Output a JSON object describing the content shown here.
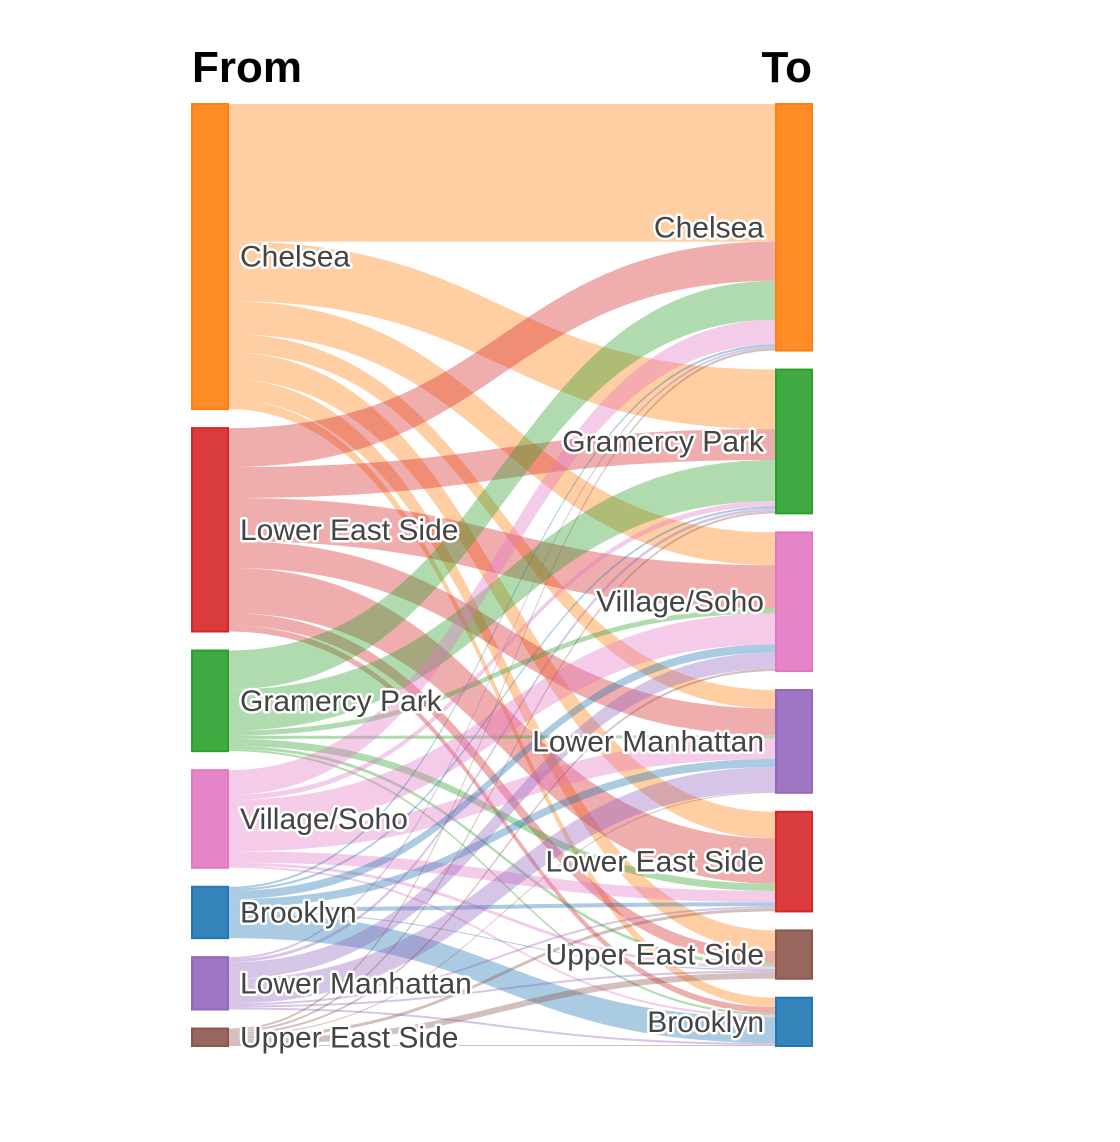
{
  "chart_data": {
    "type": "sankey",
    "headers": {
      "from": "From",
      "to": "To"
    },
    "nodes": [
      {
        "name": "Chelsea",
        "color": "#ff7f0e"
      },
      {
        "name": "Lower East Side",
        "color": "#d62728"
      },
      {
        "name": "Gramercy Park",
        "color": "#2ca02c"
      },
      {
        "name": "Village/Soho",
        "color": "#e377c2"
      },
      {
        "name": "Brooklyn",
        "color": "#1f77b4"
      },
      {
        "name": "Lower Manhattan",
        "color": "#9467bd"
      },
      {
        "name": "Upper East Side",
        "color": "#8c564b"
      }
    ],
    "source_order": [
      "Chelsea",
      "Lower East Side",
      "Gramercy Park",
      "Village/Soho",
      "Brooklyn",
      "Lower Manhattan",
      "Upper East Side"
    ],
    "target_order": [
      "Chelsea",
      "Gramercy Park",
      "Village/Soho",
      "Lower Manhattan",
      "Lower East Side",
      "Upper East Side",
      "Brooklyn"
    ],
    "links": [
      {
        "source": "Chelsea",
        "target": "Chelsea",
        "value": 134
      },
      {
        "source": "Chelsea",
        "target": "Gramercy Park",
        "value": 58
      },
      {
        "source": "Chelsea",
        "target": "Village/Soho",
        "value": 32
      },
      {
        "source": "Chelsea",
        "target": "Lower Manhattan",
        "value": 18
      },
      {
        "source": "Chelsea",
        "target": "Lower East Side",
        "value": 26
      },
      {
        "source": "Chelsea",
        "target": "Upper East Side",
        "value": 20
      },
      {
        "source": "Chelsea",
        "target": "Brooklyn",
        "value": 9
      },
      {
        "source": "Lower East Side",
        "target": "Chelsea",
        "value": 38
      },
      {
        "source": "Lower East Side",
        "target": "Gramercy Park",
        "value": 30
      },
      {
        "source": "Lower East Side",
        "target": "Village/Soho",
        "value": 42
      },
      {
        "source": "Lower East Side",
        "target": "Lower Manhattan",
        "value": 26
      },
      {
        "source": "Lower East Side",
        "target": "Lower East Side",
        "value": 44
      },
      {
        "source": "Lower East Side",
        "target": "Upper East Side",
        "value": 12
      },
      {
        "source": "Lower East Side",
        "target": "Brooklyn",
        "value": 6
      },
      {
        "source": "Gramercy Park",
        "target": "Chelsea",
        "value": 38
      },
      {
        "source": "Gramercy Park",
        "target": "Gramercy Park",
        "value": 40
      },
      {
        "source": "Gramercy Park",
        "target": "Village/Soho",
        "value": 5
      },
      {
        "source": "Gramercy Park",
        "target": "Lower Manhattan",
        "value": 3
      },
      {
        "source": "Gramercy Park",
        "target": "Lower East Side",
        "value": 7
      },
      {
        "source": "Gramercy Park",
        "target": "Upper East Side",
        "value": 3
      },
      {
        "source": "Gramercy Park",
        "target": "Brooklyn",
        "value": 2
      },
      {
        "source": "Village/Soho",
        "target": "Chelsea",
        "value": 24
      },
      {
        "source": "Village/Soho",
        "target": "Gramercy Park",
        "value": 5
      },
      {
        "source": "Village/Soho",
        "target": "Village/Soho",
        "value": 30
      },
      {
        "source": "Village/Soho",
        "target": "Lower Manhattan",
        "value": 20
      },
      {
        "source": "Village/Soho",
        "target": "Lower East Side",
        "value": 11
      },
      {
        "source": "Village/Soho",
        "target": "Upper East Side",
        "value": 3
      },
      {
        "source": "Village/Soho",
        "target": "Brooklyn",
        "value": 2
      },
      {
        "source": "Brooklyn",
        "target": "Chelsea",
        "value": 2
      },
      {
        "source": "Brooklyn",
        "target": "Gramercy Park",
        "value": 2
      },
      {
        "source": "Brooklyn",
        "target": "Village/Soho",
        "value": 8
      },
      {
        "source": "Brooklyn",
        "target": "Lower Manhattan",
        "value": 8
      },
      {
        "source": "Brooklyn",
        "target": "Lower East Side",
        "value": 4
      },
      {
        "source": "Brooklyn",
        "target": "Upper East Side",
        "value": 1
      },
      {
        "source": "Brooklyn",
        "target": "Brooklyn",
        "value": 25
      },
      {
        "source": "Lower Manhattan",
        "target": "Chelsea",
        "value": 2
      },
      {
        "source": "Lower Manhattan",
        "target": "Gramercy Park",
        "value": 3
      },
      {
        "source": "Lower Manhattan",
        "target": "Village/Soho",
        "value": 16
      },
      {
        "source": "Lower Manhattan",
        "target": "Lower Manhattan",
        "value": 24
      },
      {
        "source": "Lower Manhattan",
        "target": "Lower East Side",
        "value": 2
      },
      {
        "source": "Lower Manhattan",
        "target": "Upper East Side",
        "value": 2
      },
      {
        "source": "Lower Manhattan",
        "target": "Brooklyn",
        "value": 2
      },
      {
        "source": "Upper East Side",
        "target": "Chelsea",
        "value": 2
      },
      {
        "source": "Upper East Side",
        "target": "Gramercy Park",
        "value": 2
      },
      {
        "source": "Upper East Side",
        "target": "Village/Soho",
        "value": 2
      },
      {
        "source": "Upper East Side",
        "target": "Lower Manhattan",
        "value": 1
      },
      {
        "source": "Upper East Side",
        "target": "Lower East Side",
        "value": 3
      },
      {
        "source": "Upper East Side",
        "target": "Upper East Side",
        "value": 6
      },
      {
        "source": "Upper East Side",
        "target": "Brooklyn",
        "value": 1
      }
    ]
  }
}
